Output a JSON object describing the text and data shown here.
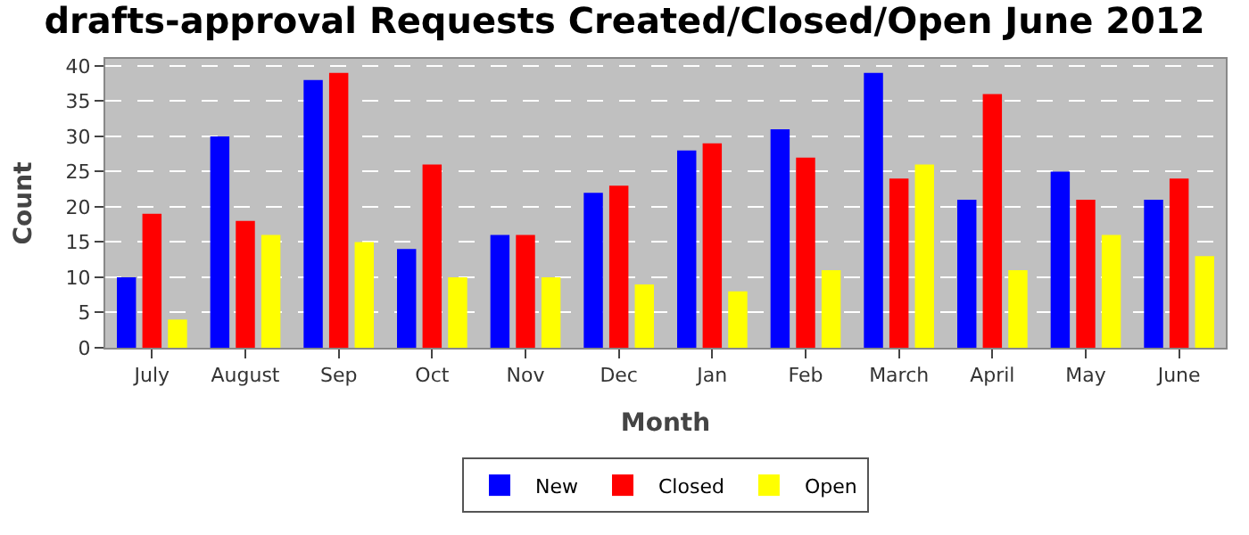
{
  "chart_data": {
    "type": "bar",
    "title": "drafts-approval Requests Created/Closed/Open June 2012",
    "xlabel": "Month",
    "ylabel": "Count",
    "categories": [
      "July",
      "August",
      "Sep",
      "Oct",
      "Nov",
      "Dec",
      "Jan",
      "Feb",
      "March",
      "April",
      "May",
      "June"
    ],
    "series": [
      {
        "name": "New",
        "color": "#0000ff",
        "values": [
          10,
          30,
          38,
          14,
          16,
          22,
          28,
          31,
          39,
          21,
          25,
          21
        ]
      },
      {
        "name": "Closed",
        "color": "#ff0000",
        "values": [
          19,
          18,
          39,
          26,
          16,
          23,
          29,
          27,
          24,
          36,
          21,
          24
        ]
      },
      {
        "name": "Open",
        "color": "#ffff00",
        "values": [
          4,
          16,
          15,
          10,
          10,
          9,
          8,
          11,
          26,
          11,
          16,
          13
        ]
      }
    ],
    "ylim": [
      0,
      41
    ],
    "yticks": [
      0,
      5,
      10,
      15,
      20,
      25,
      30,
      35,
      40
    ],
    "grid": "y",
    "legend": "bottom"
  }
}
